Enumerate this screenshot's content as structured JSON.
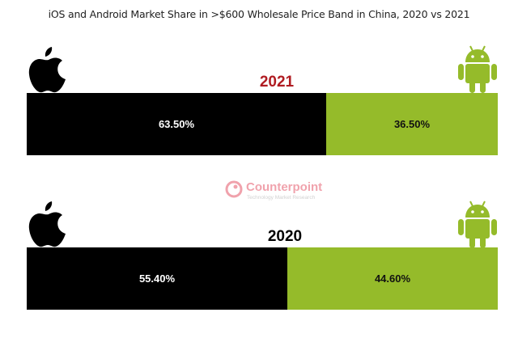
{
  "chart_data": {
    "type": "bar",
    "orientation": "horizontal-stacked",
    "title": "iOS and Android Market Share in >$600 Wholesale Price Band in China, 2020 vs 2021",
    "categories": [
      "2021",
      "2020"
    ],
    "series": [
      {
        "name": "iOS",
        "values": [
          63.5,
          55.4
        ],
        "labels": [
          "63.50%",
          "55.40%"
        ],
        "color": "#000000",
        "label_color": "#ffffff"
      },
      {
        "name": "Android",
        "values": [
          36.5,
          44.6
        ],
        "labels": [
          "36.50%",
          "44.60%"
        ],
        "color": "#95bb2a",
        "label_color": "#111111"
      }
    ],
    "category_colors": {
      "2021": "#b01c22",
      "2020": "#000000"
    },
    "xlabel": "",
    "ylabel": "",
    "xlim": [
      0,
      100
    ],
    "grid": false,
    "legend": "icons (Apple logo left, Android robot right)"
  },
  "watermark": {
    "name": "Counterpoint",
    "tagline": "Technology Market Research"
  },
  "icons": {
    "ios": "apple-logo-icon",
    "android": "android-robot-icon"
  }
}
